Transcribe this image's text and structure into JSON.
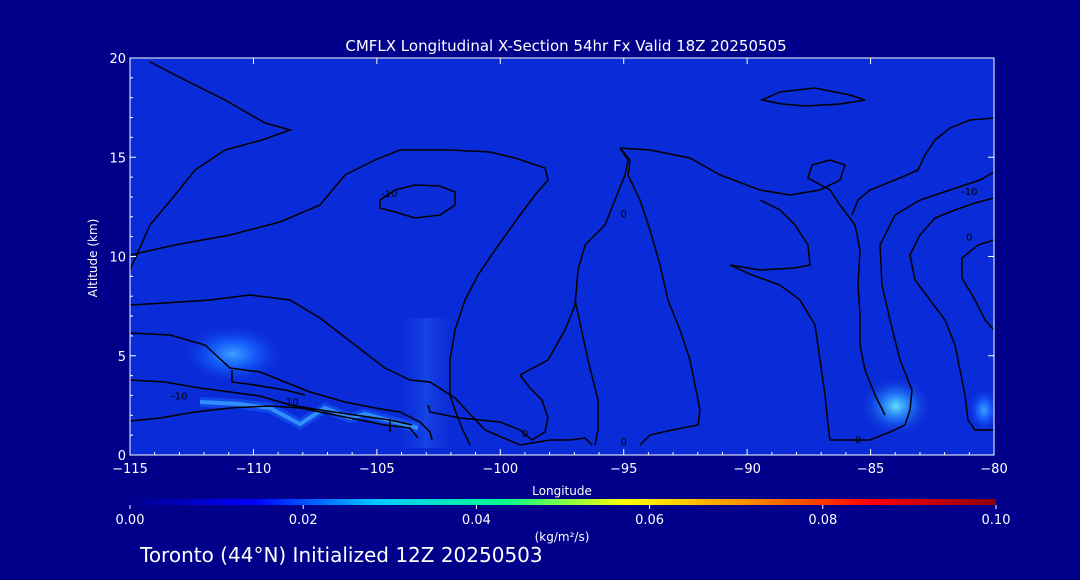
{
  "chart_data": {
    "type": "heatmap",
    "title": "CMFLX Longitudinal X-Section 54hr  Fx Valid 18Z 20250505",
    "xlabel": "Longitude",
    "ylabel": "Altitude (km)",
    "xlim": [
      -115,
      -80
    ],
    "ylim": [
      0,
      20
    ],
    "x_ticks": [
      -115,
      -110,
      -105,
      -100,
      -95,
      -90,
      -85,
      -80
    ],
    "x_tick_labels": [
      "−115",
      "−110",
      "−105",
      "−100",
      "−95",
      "−90",
      "−85",
      "−80"
    ],
    "y_ticks": [
      0,
      5,
      10,
      15,
      20
    ],
    "y_tick_labels": [
      "0",
      "5",
      "10",
      "15",
      "20"
    ],
    "colorbar": {
      "range": [
        0.0,
        0.1
      ],
      "ticks": [
        0.0,
        0.02,
        0.04,
        0.06,
        0.08,
        0.1
      ],
      "tick_labels": [
        "0.00",
        "0.02",
        "0.04",
        "0.06",
        "0.08",
        "0.10"
      ],
      "units": "(kg/m²/s)",
      "colors": [
        "#00008b",
        "#0000ff",
        "#00c8ff",
        "#00ff90",
        "#ffff00",
        "#ff8c00",
        "#ff0000",
        "#8b0000"
      ]
    },
    "field_max_regions": [
      {
        "lon": -111,
        "alt": 5.2,
        "value": 0.012
      },
      {
        "lon": -102.5,
        "alt": 4.0,
        "value": 0.006
      },
      {
        "lon": -84.5,
        "alt": 2.5,
        "value": 0.03
      },
      {
        "lon": -108,
        "alt": 1.8,
        "value": 0.02
      }
    ],
    "contour_labels": [
      {
        "text": "-10",
        "lon": -113,
        "alt": 3.0
      },
      {
        "text": "-10",
        "lon": -108.5,
        "alt": 2.7
      },
      {
        "text": "-10",
        "lon": -104.5,
        "alt": 13.2
      },
      {
        "text": "-10",
        "lon": -81,
        "alt": 13.3
      },
      {
        "text": "0",
        "lon": -95,
        "alt": 12.2
      },
      {
        "text": "0",
        "lon": -99,
        "alt": 1.1
      },
      {
        "text": "0",
        "lon": -95,
        "alt": 0.7
      },
      {
        "text": "0",
        "lon": -85.5,
        "alt": 0.8
      },
      {
        "text": "0",
        "lon": -81,
        "alt": 11.0
      }
    ]
  },
  "footer": {
    "location_text": "Toronto (44°N) Initialized 12Z 20250503"
  },
  "colors": {
    "background": "#00008b",
    "foreground": "#ffffff",
    "contour": "#000000"
  }
}
